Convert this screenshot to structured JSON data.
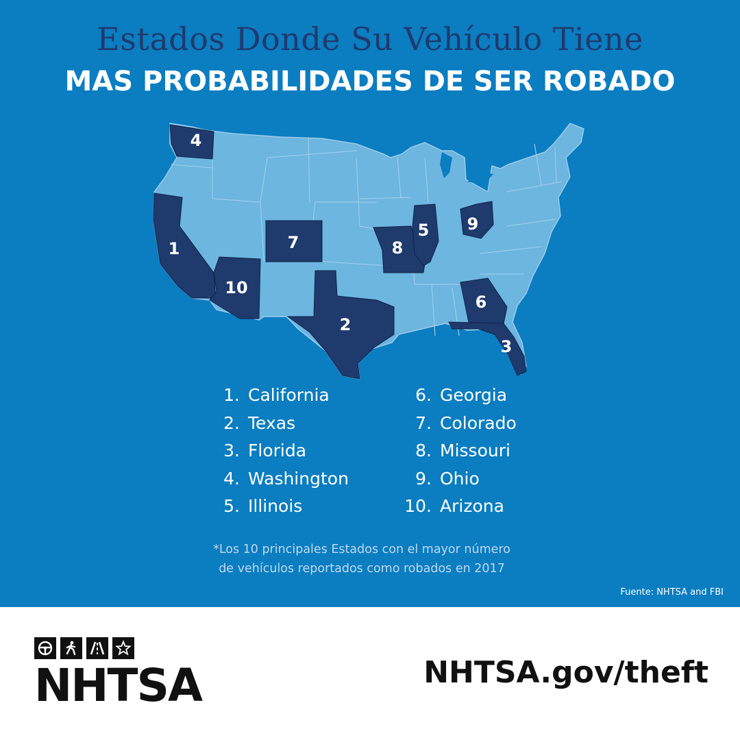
{
  "title": {
    "line1": "Estados Donde Su Vehículo Tiene",
    "line2": "MAS PROBABILIDADES DE SER ROBADO"
  },
  "map": {
    "base_color": "#6cb6e0",
    "highlight_color": "#1f3a6d",
    "highlighted_states": [
      {
        "state": "California",
        "rank": "1"
      },
      {
        "state": "Texas",
        "rank": "2"
      },
      {
        "state": "Florida",
        "rank": "3"
      },
      {
        "state": "Washington",
        "rank": "4"
      },
      {
        "state": "Illinois",
        "rank": "5"
      },
      {
        "state": "Georgia",
        "rank": "6"
      },
      {
        "state": "Colorado",
        "rank": "7"
      },
      {
        "state": "Missouri",
        "rank": "8"
      },
      {
        "state": "Ohio",
        "rank": "9"
      },
      {
        "state": "Arizona",
        "rank": "10"
      }
    ]
  },
  "ranking": {
    "column1": [
      {
        "num": "1.",
        "name": "California"
      },
      {
        "num": "2.",
        "name": "Texas"
      },
      {
        "num": "3.",
        "name": "Florida"
      },
      {
        "num": "4.",
        "name": "Washington"
      },
      {
        "num": "5.",
        "name": "Illinois"
      }
    ],
    "column2": [
      {
        "num": "6.",
        "name": "Georgia"
      },
      {
        "num": "7.",
        "name": "Colorado"
      },
      {
        "num": "8.",
        "name": "Missouri"
      },
      {
        "num": "9.",
        "name": "Ohio"
      },
      {
        "num": "10.",
        "name": "Arizona"
      }
    ]
  },
  "footnote": "*Los 10 principales Estados con el mayor número\nde vehículos reportados como robados en 2017",
  "source": "Fuente: NHTSA and FBI",
  "brand": {
    "name": "NHTSA",
    "icons": [
      "steering-wheel-icon",
      "pedestrian-icon",
      "road-icon",
      "star-icon"
    ]
  },
  "website": "NHTSA.gov/theft",
  "colors": {
    "panel_blue": "#0b7dc1",
    "title_navy": "#1f3a6d",
    "white": "#ffffff",
    "black": "#111111"
  }
}
